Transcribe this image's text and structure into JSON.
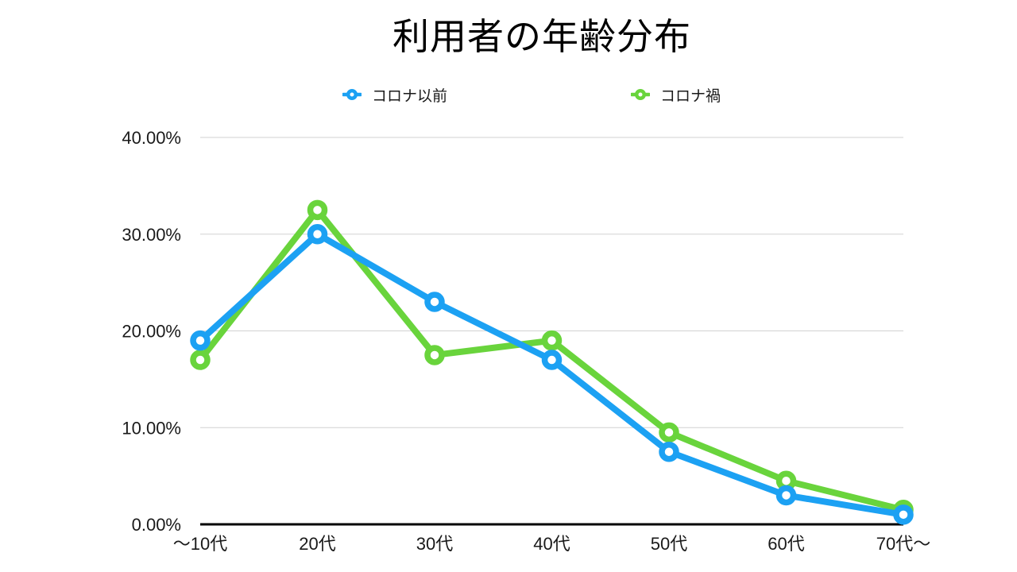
{
  "chart_data": {
    "type": "line",
    "title": "利用者の年齢分布",
    "categories": [
      "〜10代",
      "20代",
      "30代",
      "40代",
      "50代",
      "60代",
      "70代〜"
    ],
    "series": [
      {
        "name": "コロナ以前",
        "color": "#1CA1F3",
        "values": [
          19,
          30,
          23,
          17,
          7.5,
          3,
          1
        ]
      },
      {
        "name": "コロナ禍",
        "color": "#69D43C",
        "values": [
          17,
          32.5,
          17.5,
          19,
          9.5,
          4.5,
          1.5
        ]
      }
    ],
    "y_axis": {
      "min": 0,
      "max": 40,
      "tick_step": 10,
      "tick_labels": [
        "0.00%",
        "10.00%",
        "20.00%",
        "30.00%",
        "40.00%"
      ],
      "unit": "percent"
    },
    "grid": true,
    "legend_position": "top",
    "marker_style": "open-circle",
    "colors": {
      "gridline": "#D2D2D2",
      "axis_line": "#000000",
      "text": "#1A1A1A",
      "background": "#FFFFFF"
    }
  }
}
